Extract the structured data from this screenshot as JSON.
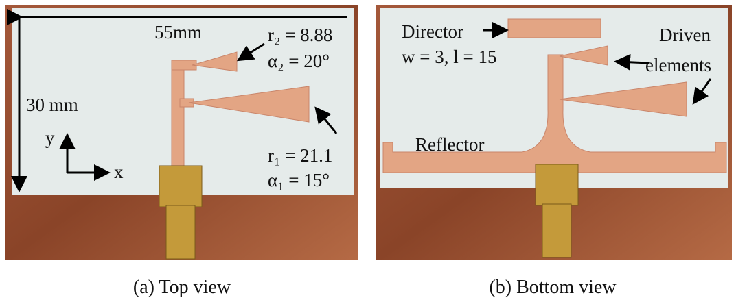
{
  "panels": [
    {
      "caption": "(a) Top view",
      "annotations": {
        "width": "55mm",
        "height": "30 mm",
        "r2": "r₂ = 8.88",
        "alpha2": "α₂ = 20°",
        "r1": "r₁ = 21.1",
        "alpha1": "α₁ = 15°",
        "axis_y": "y",
        "axis_x": "x"
      }
    },
    {
      "caption": "(b) Bottom view",
      "annotations": {
        "director": "Director",
        "director_size": "w = 3, l = 15",
        "driven": [
          "Driven",
          "elements"
        ],
        "reflector": "Reflector"
      }
    }
  ]
}
